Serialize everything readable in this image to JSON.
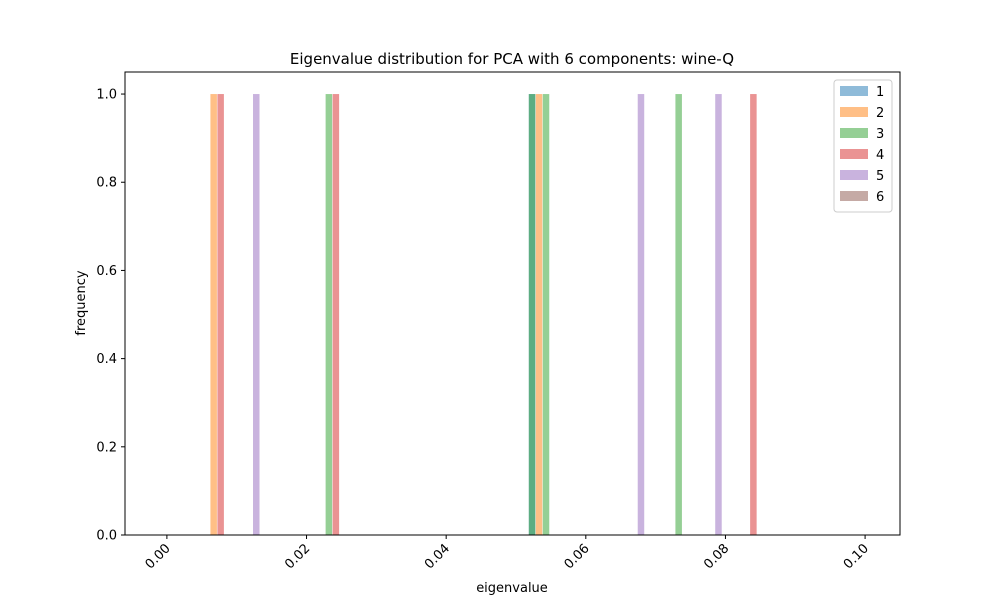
{
  "chart_data": {
    "type": "bar",
    "title": "Eigenvalue distribution for PCA with 6 components: wine-Q",
    "xlabel": "eigenvalue",
    "ylabel": "frequency",
    "xlim": [
      -0.006,
      0.105
    ],
    "ylim": [
      0,
      1.05
    ],
    "x_ticks": [
      0.0,
      0.02,
      0.04,
      0.06,
      0.08,
      0.1
    ],
    "x_tick_labels": [
      "0.00",
      "0.02",
      "0.04",
      "0.06",
      "0.08",
      "0.10"
    ],
    "y_ticks": [
      0.0,
      0.2,
      0.4,
      0.6,
      0.8,
      1.0
    ],
    "y_tick_labels": [
      "0.0",
      "0.2",
      "0.4",
      "0.6",
      "0.8",
      "1.0"
    ],
    "grid": false,
    "legend_position": "top-right",
    "opacity": 0.5,
    "series": [
      {
        "name": "1",
        "color": "#1f77b4",
        "x": [
          0.0523
        ],
        "values": [
          1
        ]
      },
      {
        "name": "2",
        "color": "#ff7f0e",
        "x": [
          0.0067,
          0.0533
        ],
        "values": [
          1,
          1
        ]
      },
      {
        "name": "3",
        "color": "#2ca02c",
        "x": [
          0.0232,
          0.0523,
          0.0543,
          0.0733
        ],
        "values": [
          1,
          1,
          1,
          1
        ]
      },
      {
        "name": "4",
        "color": "#d62728",
        "x": [
          0.0077,
          0.0242,
          0.084
        ],
        "values": [
          1,
          1,
          1
        ]
      },
      {
        "name": "5",
        "color": "#9467bd",
        "x": [
          0.0128,
          0.0679,
          0.079
        ],
        "values": [
          1,
          1,
          1
        ]
      },
      {
        "name": "6",
        "color": "#8c564b",
        "x": [],
        "values": []
      }
    ]
  }
}
